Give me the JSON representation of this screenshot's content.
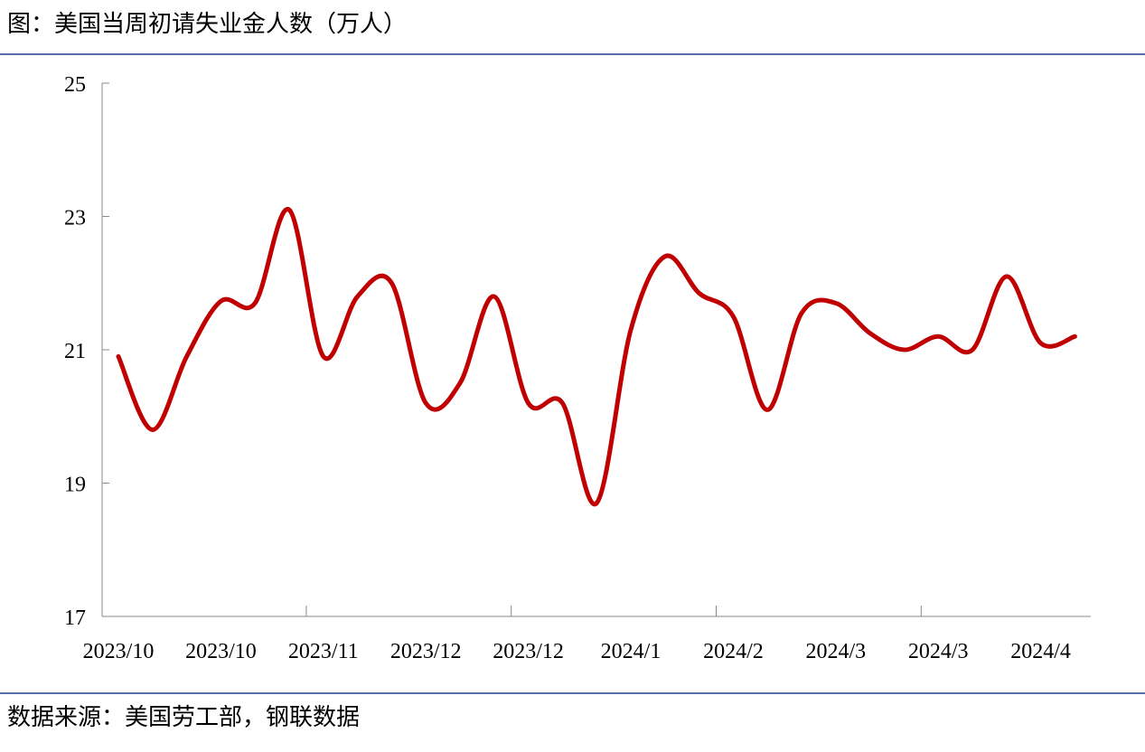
{
  "chart_data": {
    "type": "line",
    "title": "图：美国当周初请失业金人数（万人）",
    "source": "数据来源：美国劳工部，钢联数据",
    "categories": [
      "2023/10",
      null,
      null,
      "2023/10",
      null,
      null,
      "2023/11",
      null,
      null,
      "2023/12",
      null,
      null,
      "2023/12",
      null,
      null,
      "2024/1",
      null,
      null,
      "2024/2",
      null,
      null,
      "2024/3",
      null,
      null,
      "2024/3",
      null,
      null,
      "2024/4",
      null
    ],
    "series": [
      {
        "name": "当周初请失业金人数",
        "color": "#c00000",
        "values": [
          20.9,
          19.8,
          20.9,
          21.73,
          21.7,
          23.1,
          20.9,
          21.8,
          22.0,
          20.2,
          20.5,
          21.8,
          20.2,
          20.2,
          18.7,
          21.3,
          22.4,
          21.85,
          21.5,
          20.1,
          21.55,
          21.7,
          21.25,
          21.0,
          21.2,
          21.0,
          22.1,
          21.1,
          21.2
        ]
      }
    ],
    "ylim": [
      17,
      25
    ],
    "yticks": [
      17,
      19,
      21,
      23,
      25
    ]
  }
}
